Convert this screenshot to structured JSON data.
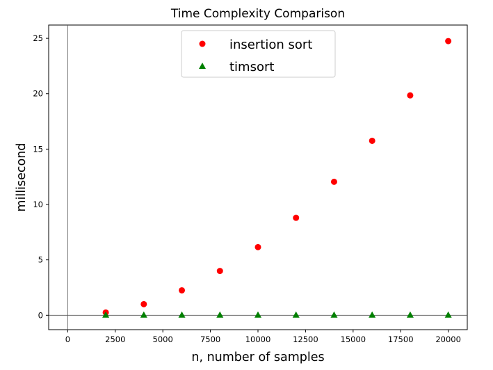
{
  "chart_data": {
    "type": "scatter",
    "title": "Time Complexity Comparison",
    "xlabel": "n, number of samples",
    "ylabel": "millisecond",
    "xlim": [
      -1000,
      21000
    ],
    "ylim": [
      -1.3,
      26.2
    ],
    "x_ticks": [
      0,
      2500,
      5000,
      7500,
      10000,
      12500,
      15000,
      17500,
      20000
    ],
    "y_ticks": [
      0,
      5,
      10,
      15,
      20,
      25
    ],
    "grid": false,
    "zero_lines": true,
    "legend_position": "top-center",
    "series": [
      {
        "name": "insertion sort",
        "marker": "circle",
        "color": "#ff0000",
        "x": [
          2000,
          4000,
          6000,
          8000,
          10000,
          12000,
          14000,
          16000,
          18000,
          20000
        ],
        "y": [
          0.25,
          1.0,
          2.25,
          4.0,
          6.15,
          8.8,
          12.05,
          15.75,
          19.85,
          24.75
        ]
      },
      {
        "name": "timsort",
        "marker": "triangle",
        "color": "#008000",
        "x": [
          2000,
          4000,
          6000,
          8000,
          10000,
          12000,
          14000,
          16000,
          18000,
          20000
        ],
        "y": [
          0,
          0,
          0,
          0,
          0,
          0,
          0,
          0,
          0,
          0
        ]
      }
    ]
  }
}
